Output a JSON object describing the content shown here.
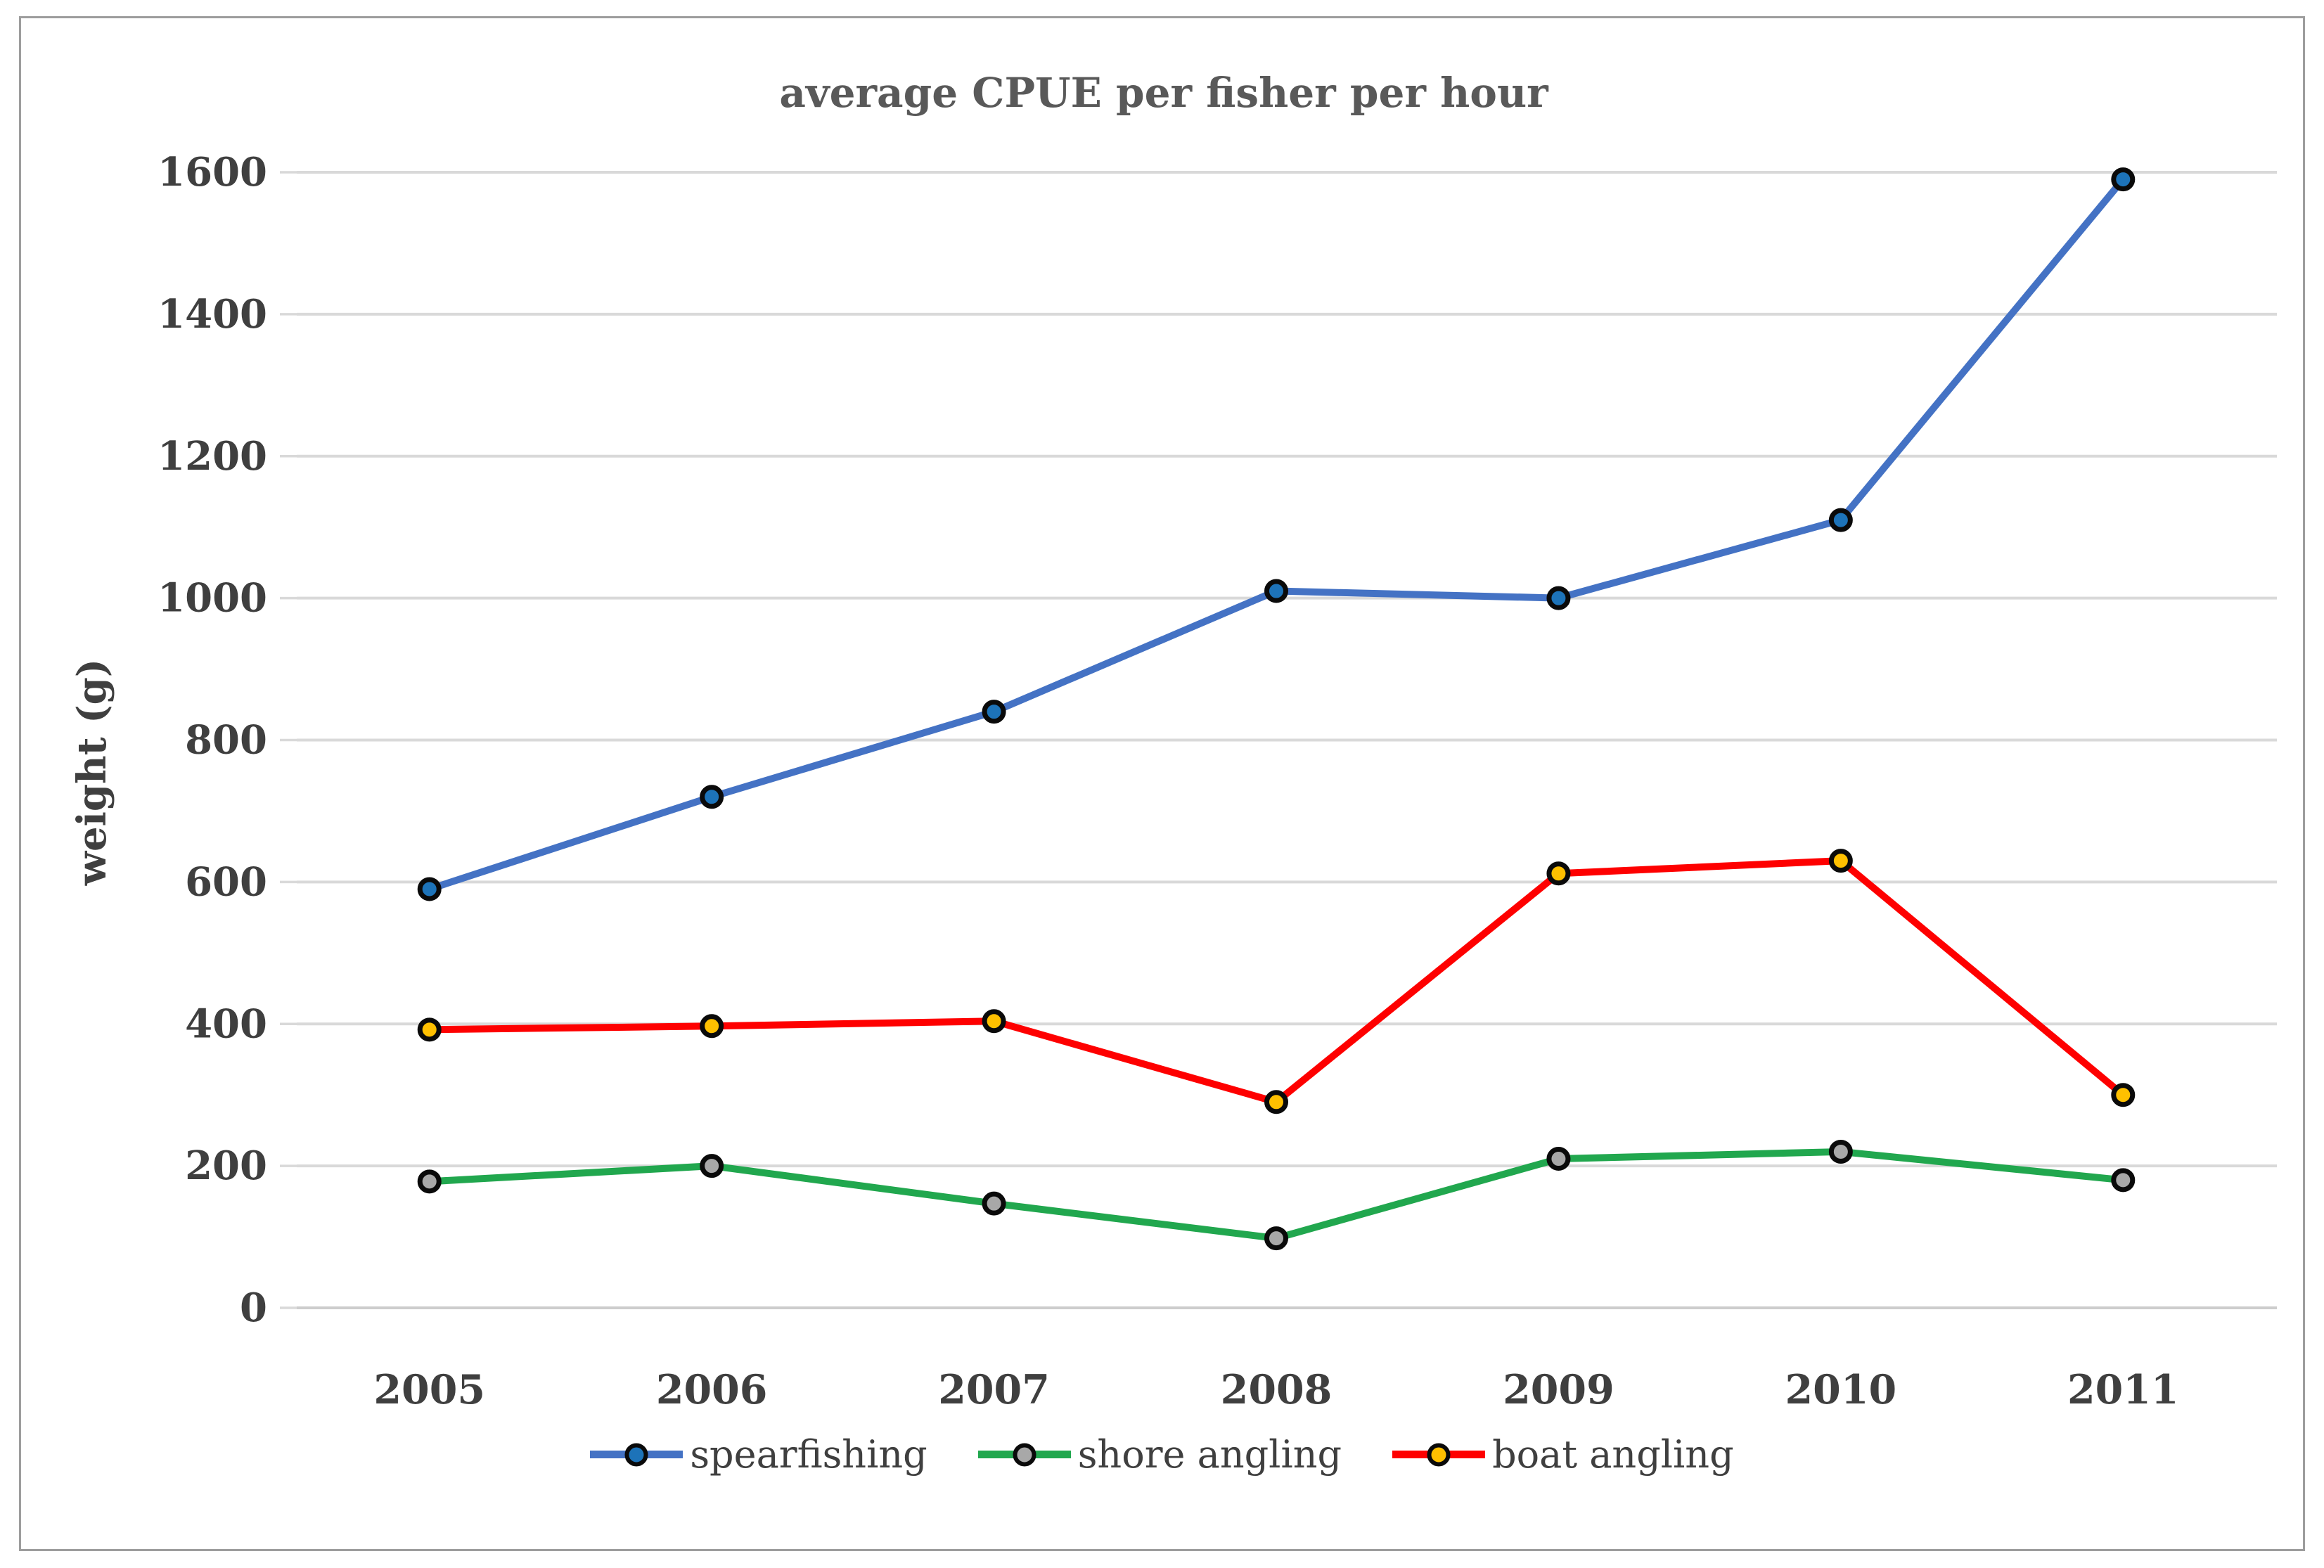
{
  "chart_data": {
    "type": "line",
    "title": "average CPUE per fisher per hour",
    "xlabel": "",
    "ylabel": "weight (g)",
    "categories": [
      "2005",
      "2006",
      "2007",
      "2008",
      "2009",
      "2010",
      "2011"
    ],
    "y_ticks": [
      0,
      200,
      400,
      600,
      800,
      1000,
      1200,
      1400,
      1600
    ],
    "ylim": [
      0,
      1600
    ],
    "grid": "horizontal",
    "legend_position": "bottom",
    "series": [
      {
        "name": "spearfishing",
        "line_color": "#4472c4",
        "marker_fill": "#1d73b9",
        "marker_outline": "#0a0a0a",
        "values": [
          590,
          720,
          840,
          1010,
          1000,
          1110,
          1590
        ]
      },
      {
        "name": "shore angling",
        "line_color": "#21a74e",
        "marker_fill": "#a8a8a8",
        "marker_outline": "#0a0a0a",
        "values": [
          178,
          200,
          147,
          98,
          210,
          220,
          180
        ]
      },
      {
        "name": "boat angling",
        "line_color": "#fe0000",
        "marker_fill": "#ffc000",
        "marker_outline": "#0a0a0a",
        "values": [
          392,
          397,
          404,
          290,
          612,
          630,
          300
        ]
      }
    ]
  },
  "style": {
    "gridline_color": "#d9d9d9",
    "zero_line_color": "#cdcdcd",
    "tick_label_color": "#3f3f3f",
    "title_color": "#595959",
    "frame_border_color": "#9d9d9d",
    "background": "#ffffff"
  }
}
